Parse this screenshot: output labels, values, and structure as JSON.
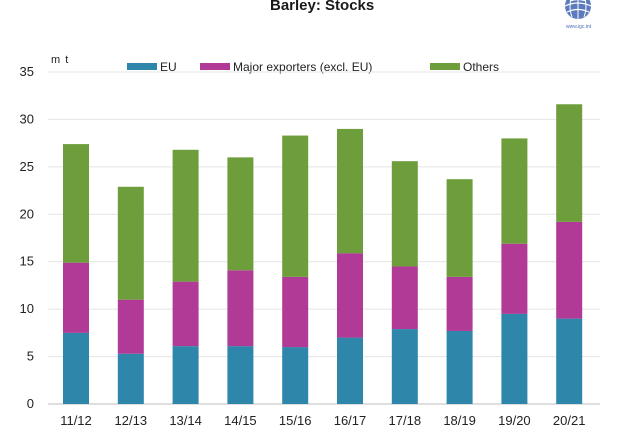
{
  "chart_data": {
    "type": "bar",
    "stacked": true,
    "title": "Barley: Stocks",
    "ylabel": "m t",
    "xlabel": "",
    "ylim": [
      0,
      35
    ],
    "yticks": [
      0,
      5,
      10,
      15,
      20,
      25,
      30,
      35
    ],
    "grid": true,
    "legend_position": "top",
    "categories": [
      "11/12",
      "12/13",
      "13/14",
      "14/15",
      "15/16",
      "16/17",
      "17/18",
      "18/19",
      "19/20",
      "20/21"
    ],
    "series": [
      {
        "name": "EU",
        "color": "#2e86ab",
        "values": [
          7.5,
          5.3,
          6.1,
          6.1,
          6.0,
          7.0,
          7.9,
          7.7,
          9.5,
          9.0
        ]
      },
      {
        "name": "Major exporters (excl. EU)",
        "color": "#b03a95",
        "values": [
          7.4,
          5.7,
          6.8,
          8.0,
          7.4,
          8.9,
          6.6,
          5.7,
          7.4,
          10.2
        ]
      },
      {
        "name": "Others",
        "color": "#6e9e3c",
        "values": [
          12.5,
          11.9,
          13.9,
          11.9,
          14.9,
          13.1,
          11.1,
          10.3,
          11.1,
          12.4
        ]
      }
    ]
  },
  "logo": {
    "name": "globe-logo",
    "text": "www.igc.int",
    "color": "#4b6cb7"
  }
}
